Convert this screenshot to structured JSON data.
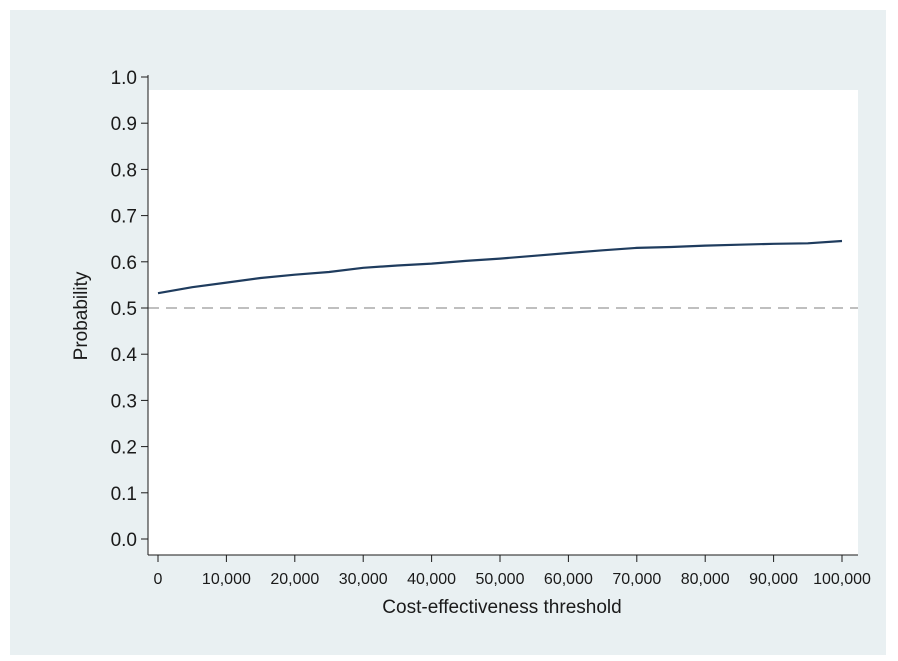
{
  "chart_data": {
    "type": "line",
    "xlabel": "Cost-effectiveness threshold",
    "ylabel": "Probability",
    "xlim": [
      0,
      100000
    ],
    "ylim": [
      0,
      1
    ],
    "x_ticks": [
      0,
      10000,
      20000,
      30000,
      40000,
      50000,
      60000,
      70000,
      80000,
      90000,
      100000
    ],
    "x_tick_labels": [
      "0",
      "10,000",
      "20,000",
      "30,000",
      "40,000",
      "50,000",
      "60,000",
      "70,000",
      "80,000",
      "90,000",
      "100,000"
    ],
    "y_ticks": [
      0,
      0.1,
      0.2,
      0.3,
      0.4,
      0.5,
      0.6,
      0.7,
      0.8,
      0.9,
      1.0
    ],
    "y_tick_labels": [
      "0.0",
      "0.1",
      "0.2",
      "0.3",
      "0.4",
      "0.5",
      "0.6",
      "0.7",
      "0.8",
      "0.9",
      "1.0"
    ],
    "grid": false,
    "reference_line": {
      "y": 0.5,
      "style": "dashed",
      "color": "#aaaaaa"
    },
    "series": [
      {
        "color": "#1f3c5e",
        "x": [
          0,
          5000,
          10000,
          15000,
          20000,
          25000,
          30000,
          35000,
          40000,
          45000,
          50000,
          55000,
          60000,
          65000,
          70000,
          75000,
          80000,
          85000,
          90000,
          95000,
          100000
        ],
        "y": [
          0.532,
          0.545,
          0.555,
          0.565,
          0.572,
          0.578,
          0.587,
          0.592,
          0.596,
          0.602,
          0.607,
          0.613,
          0.619,
          0.625,
          0.63,
          0.632,
          0.635,
          0.637,
          0.639,
          0.64,
          0.645
        ]
      }
    ]
  }
}
